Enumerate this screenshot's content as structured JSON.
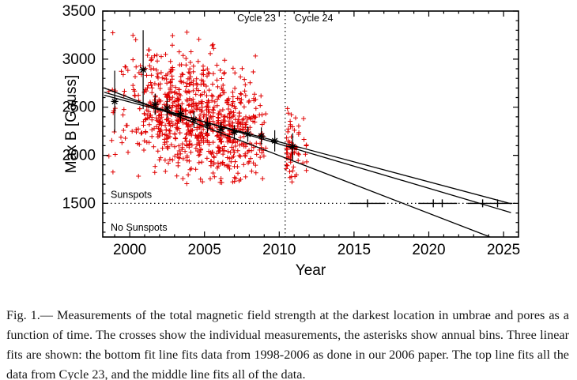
{
  "figure": {
    "caption": "Fig. 1.— Measurements of the total magnetic field strength at the darkest location in umbrae and pores as a function of time. The crosses show the individual measurements, the asterisks show annual bins. Three linear fits are shown: the bottom fit line fits data from 1998-2006 as done in our 2006 paper. The top line fits all the data from Cycle 23, and the middle line fits all of the data."
  },
  "chart_data": {
    "type": "scatter",
    "title": "",
    "xlabel": "Year",
    "ylabel": "Max B [Gauss]",
    "xlim": [
      1998.2,
      2026.0
    ],
    "ylim": [
      1150,
      3500
    ],
    "xticks": [
      2000,
      2005,
      2010,
      2015,
      2020,
      2025
    ],
    "yticks": [
      1500,
      2000,
      2500,
      3000,
      3500
    ],
    "x_minor_step": 1,
    "y_minor_step": 100,
    "threshold_gauss": 1500,
    "cycle_boundary_year": 2010.4,
    "labels": {
      "cycle23": "Cycle 23",
      "cycle24": "Cycle 24",
      "above_threshold": "Sunspots",
      "below_threshold": "No Sunspots"
    },
    "colors": {
      "measurements": "#e00000",
      "axes": "#000000"
    },
    "value_min": 1700,
    "value_max": 3320,
    "measurement_clusters": [
      {
        "year": 1998.8,
        "spread": 0.25,
        "count": 12,
        "mean": 2530,
        "sd": 250
      },
      {
        "year": 1999.6,
        "spread": 0.3,
        "count": 16,
        "mean": 2560,
        "sd": 270
      },
      {
        "year": 2000.5,
        "spread": 0.35,
        "count": 26,
        "mean": 2580,
        "sd": 290
      },
      {
        "year": 2001.2,
        "spread": 0.3,
        "count": 50,
        "mean": 2550,
        "sd": 300
      },
      {
        "year": 2001.9,
        "spread": 0.3,
        "count": 70,
        "mean": 2520,
        "sd": 310
      },
      {
        "year": 2002.6,
        "spread": 0.3,
        "count": 85,
        "mean": 2480,
        "sd": 310
      },
      {
        "year": 2003.3,
        "spread": 0.3,
        "count": 80,
        "mean": 2450,
        "sd": 300
      },
      {
        "year": 2004.0,
        "spread": 0.3,
        "count": 90,
        "mean": 2410,
        "sd": 310
      },
      {
        "year": 2004.7,
        "spread": 0.3,
        "count": 85,
        "mean": 2370,
        "sd": 300
      },
      {
        "year": 2005.4,
        "spread": 0.3,
        "count": 80,
        "mean": 2330,
        "sd": 300
      },
      {
        "year": 2006.1,
        "spread": 0.3,
        "count": 85,
        "mean": 2300,
        "sd": 300
      },
      {
        "year": 2006.8,
        "spread": 0.3,
        "count": 80,
        "mean": 2270,
        "sd": 290
      },
      {
        "year": 2007.5,
        "spread": 0.3,
        "count": 60,
        "mean": 2245,
        "sd": 280
      },
      {
        "year": 2008.2,
        "spread": 0.3,
        "count": 38,
        "mean": 2230,
        "sd": 260
      },
      {
        "year": 2008.9,
        "spread": 0.25,
        "count": 20,
        "mean": 2185,
        "sd": 220
      },
      {
        "year": 2010.9,
        "spread": 0.45,
        "count": 58,
        "mean": 2090,
        "sd": 190
      },
      {
        "year": 2011.7,
        "spread": 0.15,
        "count": 8,
        "mean": 2050,
        "sd": 160
      }
    ],
    "annual_bins": [
      {
        "year": 1999.0,
        "value": 2560,
        "err": 320
      },
      {
        "year": 2000.9,
        "value": 2890,
        "err": 410
      },
      {
        "year": 2001.7,
        "value": 2530,
        "err": 110
      },
      {
        "year": 2002.5,
        "value": 2490,
        "err": 100
      },
      {
        "year": 2003.4,
        "value": 2435,
        "err": 90
      },
      {
        "year": 2004.3,
        "value": 2370,
        "err": 85
      },
      {
        "year": 2005.2,
        "value": 2315,
        "err": 80
      },
      {
        "year": 2006.1,
        "value": 2270,
        "err": 75
      },
      {
        "year": 2007.0,
        "value": 2240,
        "err": 75
      },
      {
        "year": 2007.9,
        "value": 2220,
        "err": 80
      },
      {
        "year": 2008.8,
        "value": 2200,
        "err": 90
      },
      {
        "year": 2009.7,
        "value": 2150,
        "err": 110
      },
      {
        "year": 2010.9,
        "value": 2090,
        "err": 140
      }
    ],
    "fit_lines": [
      {
        "name": "fit-bottom-1998-2006",
        "x1": 1998.3,
        "y1": 2700,
        "x2": 2024.1,
        "y2": 1150
      },
      {
        "name": "fit-middle-all-data",
        "x1": 1998.3,
        "y1": 2655,
        "x2": 2025.5,
        "y2": 1404
      },
      {
        "name": "fit-top-cycle23",
        "x1": 1998.3,
        "y1": 2625,
        "x2": 2025.5,
        "y2": 1496
      }
    ],
    "threshold_ticks": [
      {
        "x": 2015.9,
        "lo": 2014.7,
        "hi": 2017.1
      },
      {
        "x": 2020.3,
        "lo": 2019.3,
        "hi": 2021.4
      },
      {
        "x": 2020.9,
        "lo": 2020.0,
        "hi": 2021.9
      },
      {
        "x": 2023.6,
        "lo": 2022.6,
        "hi": 2024.7
      },
      {
        "x": 2024.6,
        "lo": 2023.7,
        "hi": 2025.6
      }
    ]
  }
}
